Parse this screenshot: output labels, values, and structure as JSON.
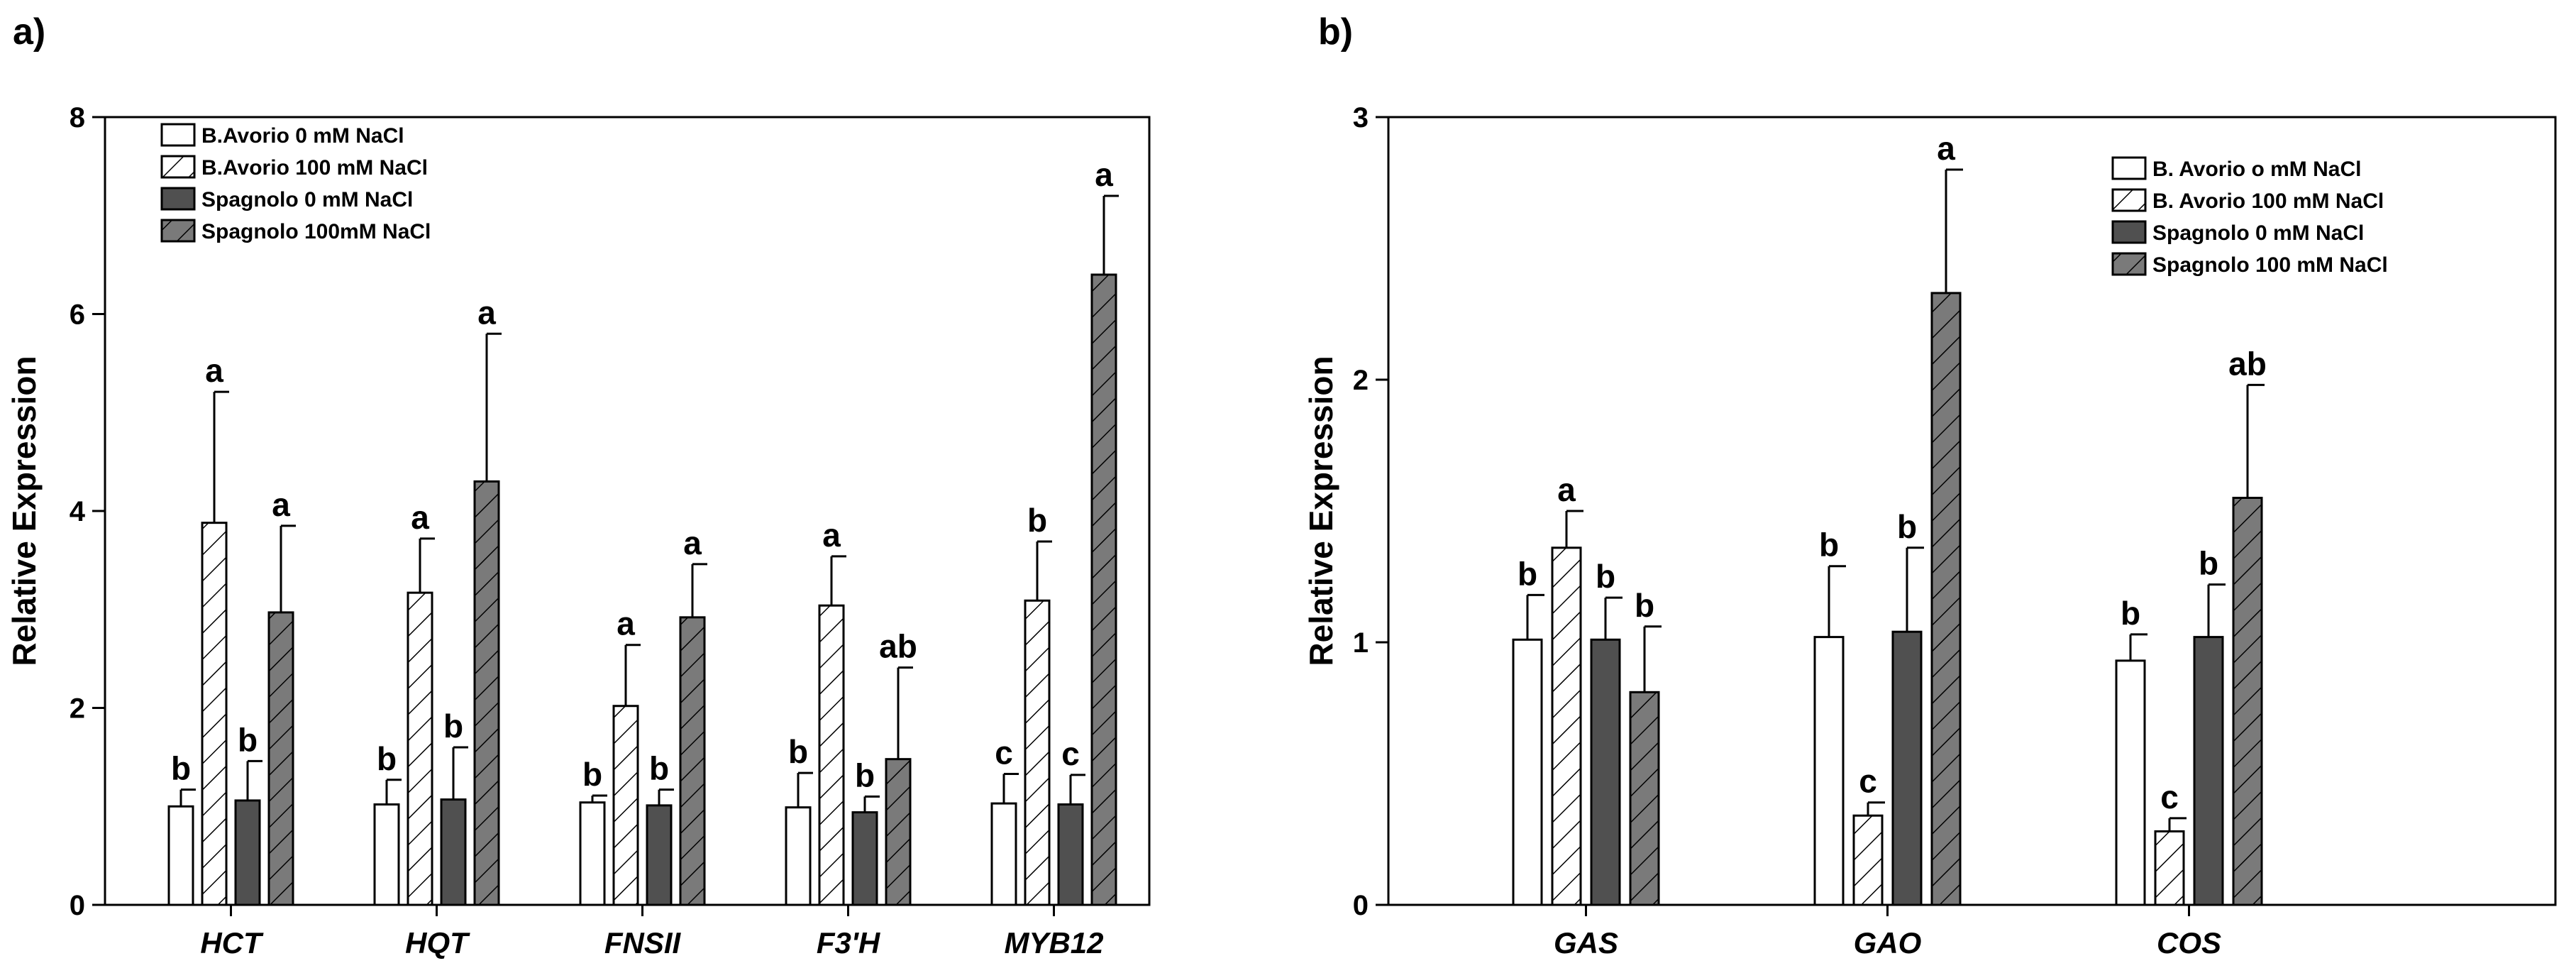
{
  "panel_labels": [
    "a)",
    "b)"
  ],
  "chart_data": [
    {
      "type": "bar",
      "panel": "a)",
      "ylabel": "Relative Expression",
      "xlabel": "",
      "ylim": [
        0,
        8
      ],
      "yticks": [
        0,
        2,
        4,
        6,
        8
      ],
      "categories": [
        "HCT",
        "HQT",
        "FNSII",
        "F3'H",
        "MYB12"
      ],
      "legend_location": "top-left",
      "series": [
        {
          "name": "B.Avorio 0 mM NaCl",
          "fill": "#ffffff",
          "hatch": false,
          "values": [
            1.0,
            1.02,
            1.04,
            0.99,
            1.03
          ],
          "errors": [
            0.17,
            0.25,
            0.07,
            0.35,
            0.3
          ],
          "letters": [
            "b",
            "b",
            "b",
            "b",
            "c"
          ]
        },
        {
          "name": "B.Avorio 100 mM NaCl",
          "fill": "#ffffff",
          "hatch": true,
          "values": [
            3.88,
            3.17,
            2.02,
            3.04,
            3.09
          ],
          "errors": [
            1.33,
            0.55,
            0.62,
            0.5,
            0.6
          ],
          "letters": [
            "a",
            "a",
            "a",
            "a",
            "b"
          ]
        },
        {
          "name": "Spagnolo 0 mM NaCl",
          "fill": "#505050",
          "hatch": false,
          "values": [
            1.06,
            1.07,
            1.01,
            0.94,
            1.02
          ],
          "errors": [
            0.4,
            0.53,
            0.16,
            0.16,
            0.3
          ],
          "letters": [
            "b",
            "b",
            "b",
            "b",
            "c"
          ]
        },
        {
          "name": "Spagnolo 100mM NaCl",
          "fill": "#7a7a7a",
          "hatch": true,
          "values": [
            2.97,
            4.3,
            2.92,
            1.48,
            6.4
          ],
          "errors": [
            0.88,
            1.5,
            0.54,
            0.93,
            0.8
          ],
          "letters": [
            "a",
            "a",
            "a",
            "ab",
            "a"
          ]
        }
      ]
    },
    {
      "type": "bar",
      "panel": "b)",
      "ylabel": "Relative Expression",
      "xlabel": "",
      "ylim": [
        0,
        3
      ],
      "yticks": [
        0,
        1,
        2,
        3
      ],
      "categories": [
        "GAS",
        "GAO",
        "COS"
      ],
      "legend_location": "top-right",
      "series": [
        {
          "name": "B. Avorio o mM NaCl",
          "fill": "#ffffff",
          "hatch": false,
          "values": [
            1.01,
            1.02,
            0.93
          ],
          "errors": [
            0.17,
            0.27,
            0.1
          ],
          "letters": [
            "b",
            "b",
            "b"
          ]
        },
        {
          "name": "B. Avorio 100 mM NaCl",
          "fill": "#ffffff",
          "hatch": true,
          "values": [
            1.36,
            0.34,
            0.28
          ],
          "errors": [
            0.14,
            0.05,
            0.05
          ],
          "letters": [
            "a",
            "c",
            "c"
          ]
        },
        {
          "name": "Spagnolo 0 mM NaCl",
          "fill": "#505050",
          "hatch": false,
          "values": [
            1.01,
            1.04,
            1.02
          ],
          "errors": [
            0.16,
            0.32,
            0.2
          ],
          "letters": [
            "b",
            "b",
            "b"
          ]
        },
        {
          "name": "Spagnolo 100 mM NaCl",
          "fill": "#7a7a7a",
          "hatch": true,
          "values": [
            0.81,
            2.33,
            1.55
          ],
          "errors": [
            0.25,
            0.47,
            0.43
          ],
          "letters": [
            "b",
            "a",
            "ab"
          ]
        }
      ]
    }
  ]
}
